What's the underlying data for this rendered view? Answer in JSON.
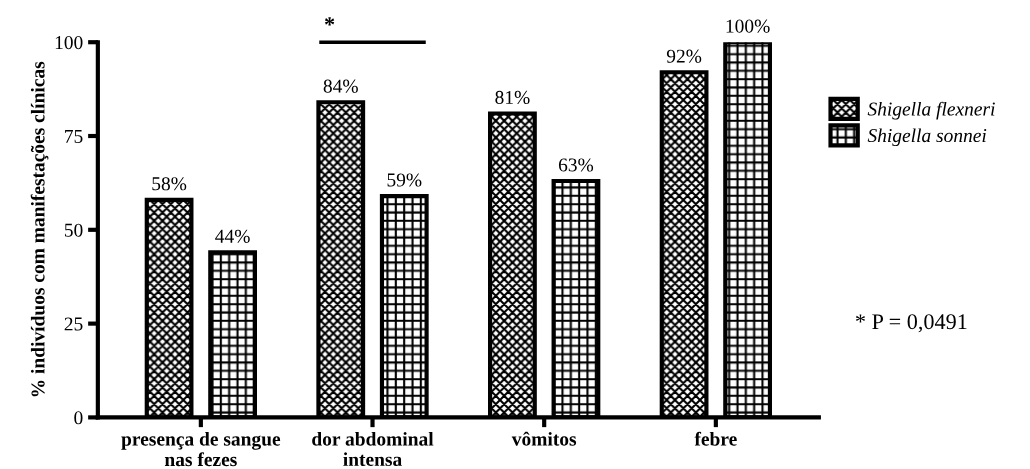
{
  "chart_data": {
    "type": "bar",
    "ylabel": "% indivíduos com manifestações clínicas",
    "categories": [
      "presença de sangue\nnas fezes",
      "dor abdominal\nintensa",
      "vômitos",
      "febre"
    ],
    "series": [
      {
        "name": "Shigella flexneri",
        "color": "#000000",
        "values": [
          58,
          84,
          81,
          92
        ],
        "value_labels": [
          "58%",
          "84%",
          "81%",
          "92%"
        ]
      },
      {
        "name": "Shigella sonnei",
        "color": "#000000",
        "values": [
          44,
          59,
          63,
          100
        ],
        "value_labels": [
          "44%",
          "59%",
          "63%",
          "100%"
        ]
      }
    ],
    "ylim": [
      0,
      100
    ],
    "yticks": [
      0,
      25,
      50,
      75,
      100
    ],
    "grid": false,
    "legend": "right",
    "annotations": [
      "*",
      "* P = 0,0491"
    ]
  }
}
